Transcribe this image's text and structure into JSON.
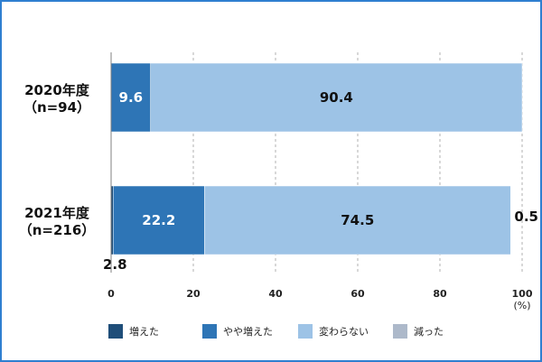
{
  "chart_data": {
    "type": "bar",
    "orientation": "horizontal",
    "stacked": true,
    "categories": [
      [
        "2020年度",
        "（n=94）"
      ],
      [
        "2021年度",
        "（n=216）"
      ]
    ],
    "series": [
      {
        "name": "増えた",
        "color": "#1f4e79",
        "values": [
          0,
          0.5
        ],
        "labels": [
          "",
          ""
        ]
      },
      {
        "name": "やや増えた",
        "color": "#2e75b6",
        "values": [
          9.6,
          22.2
        ],
        "labels": [
          "9.6",
          "22.2"
        ]
      },
      {
        "name": "変わらない",
        "color": "#9dc3e6",
        "values": [
          90.4,
          74.5
        ],
        "labels": [
          "90.4",
          "74.5"
        ]
      },
      {
        "name": "減った",
        "color": "#adb9ca",
        "values": [
          0,
          0
        ],
        "labels": [
          "",
          ""
        ]
      }
    ],
    "extra_labels": [
      {
        "text": "0.5",
        "category": 1,
        "anchor": "end"
      },
      {
        "text": "2.8",
        "category": 1,
        "anchor": "start"
      }
    ],
    "xlim": [
      0,
      100
    ],
    "xticks": [
      0,
      20,
      40,
      60,
      80,
      100
    ],
    "unit": "(%)",
    "legend_position": "bottom",
    "grid": "vertical dashed"
  }
}
